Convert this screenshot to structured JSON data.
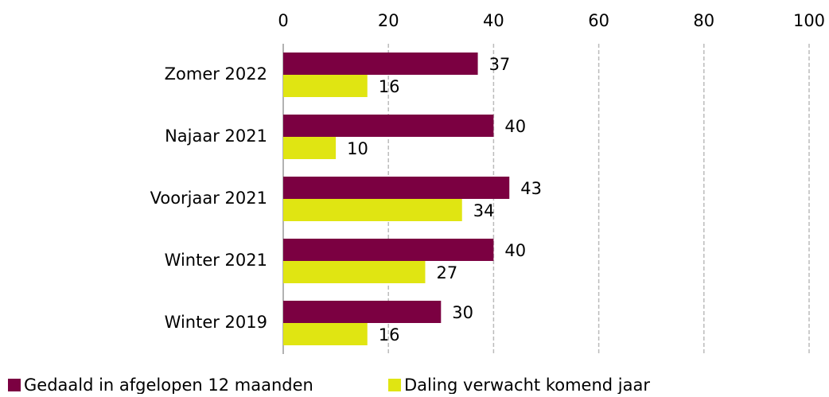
{
  "chart_data": {
    "type": "bar",
    "orientation": "horizontal",
    "categories": [
      "Zomer 2022",
      "Najaar 2021",
      "Voorjaar 2021",
      "Winter 2021",
      "Winter 2019"
    ],
    "series": [
      {
        "name": "Gedaald in afgelopen 12 maanden",
        "color": "#7b0041",
        "values": [
          37,
          40,
          43,
          40,
          30
        ]
      },
      {
        "name": "Daling verwacht komend jaar",
        "color": "#e0e512",
        "values": [
          16,
          10,
          34,
          27,
          16
        ]
      }
    ],
    "xlim": [
      0,
      100
    ],
    "xticks": [
      0,
      20,
      40,
      60,
      80,
      100
    ],
    "grid": true,
    "legend": "bottom"
  }
}
